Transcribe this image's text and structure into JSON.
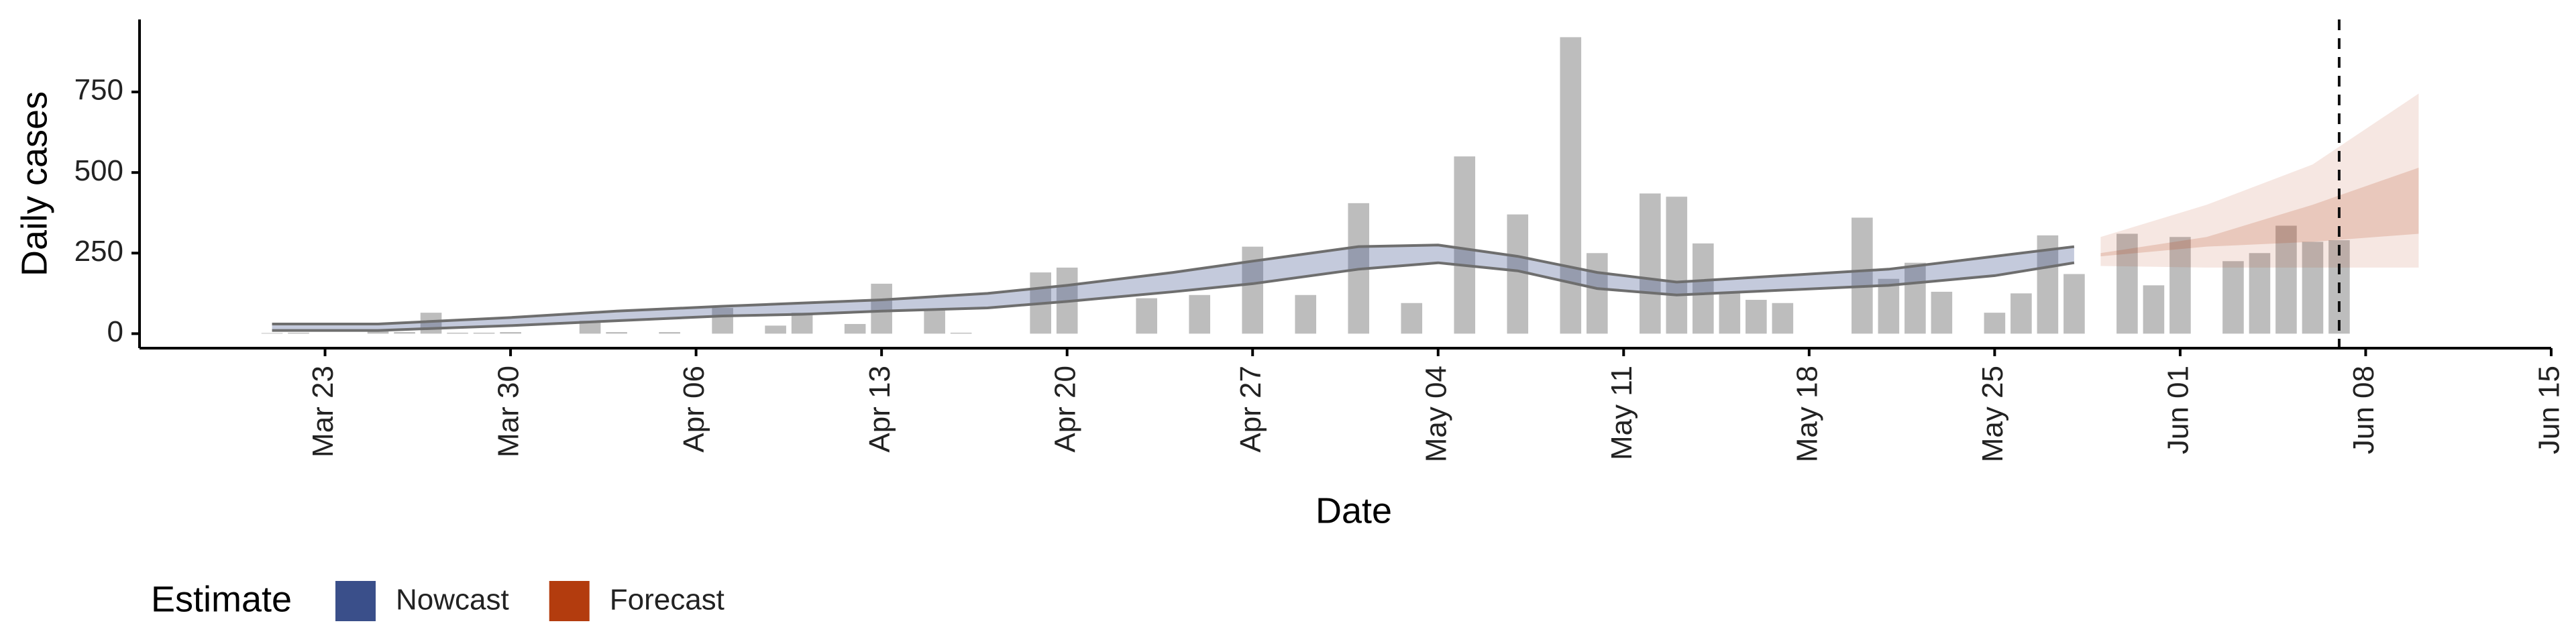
{
  "chart_data": {
    "type": "bar",
    "xlabel": "Date",
    "ylabel": "Daily cases",
    "x": [
      "Mar 21",
      "Mar 22",
      "Mar 25",
      "Mar 26",
      "Mar 27",
      "Mar 28",
      "Mar 29",
      "Mar 30",
      "Apr 2",
      "Apr 3",
      "Apr 5",
      "Apr 7",
      "Apr 9",
      "Apr 10",
      "Apr 12",
      "Apr 13",
      "Apr 15",
      "Apr 16",
      "Apr 19",
      "Apr 20",
      "Apr 23",
      "Apr 25",
      "Apr 27",
      "Apr 29",
      "May 1",
      "May 3",
      "May 5",
      "May 7",
      "May 9",
      "May 10",
      "May 12",
      "May 13",
      "May 14",
      "May 15",
      "May 16",
      "May 17",
      "May 20",
      "May 21",
      "May 22",
      "May 23",
      "May 25",
      "May 26",
      "May 27",
      "May 28",
      "May 30",
      "May 31",
      "Jun 1",
      "Jun 3",
      "Jun 4",
      "Jun 5",
      "Jun 6",
      "Jun 7"
    ],
    "values": [
      2,
      3,
      10,
      5,
      65,
      3,
      3,
      5,
      40,
      5,
      5,
      80,
      25,
      65,
      30,
      155,
      75,
      3,
      190,
      205,
      110,
      120,
      270,
      120,
      405,
      95,
      550,
      370,
      920,
      250,
      435,
      425,
      280,
      125,
      105,
      95,
      360,
      170,
      220,
      130,
      65,
      125,
      305,
      185,
      310,
      150,
      300,
      225,
      250,
      335,
      285,
      290
    ],
    "color": "#bdbdbd",
    "bands": [
      {
        "name": "Nowcast",
        "color": "#3a4f8a",
        "outline": "#6e6e6e",
        "x": [
          "Mar 21",
          "Mar 25",
          "Mar 30",
          "Apr 3",
          "Apr 7",
          "Apr 10",
          "Apr 13",
          "Apr 17",
          "Apr 20",
          "Apr 24",
          "Apr 27",
          "May 1",
          "May 4",
          "May 7",
          "May 10",
          "May 13",
          "May 17",
          "May 21",
          "May 25",
          "May 28"
        ],
        "upper": [
          30,
          30,
          50,
          70,
          85,
          95,
          105,
          125,
          150,
          190,
          225,
          270,
          275,
          240,
          190,
          160,
          180,
          200,
          240,
          270
        ],
        "lower": [
          10,
          10,
          25,
          40,
          55,
          60,
          70,
          80,
          100,
          130,
          155,
          200,
          220,
          195,
          140,
          120,
          135,
          150,
          180,
          220
        ]
      },
      {
        "name": "Forecast",
        "color": "#b33c0e",
        "x": [
          "May 29",
          "Jun 2",
          "Jun 6",
          "Jun 10"
        ],
        "upper": [
          300,
          400,
          525,
          745
        ],
        "lower": [
          210,
          205,
          205,
          205
        ],
        "inner_upper": [
          250,
          300,
          400,
          515
        ],
        "inner_lower": [
          240,
          270,
          285,
          310
        ]
      }
    ],
    "vline": "Jun 7",
    "xlim": [
      "Mar 16",
      "Jun 15"
    ],
    "xticks": [
      "Mar 23",
      "Mar 30",
      "Apr 06",
      "Apr 13",
      "Apr 20",
      "Apr 27",
      "May 04",
      "May 11",
      "May 18",
      "May 25",
      "Jun 01",
      "Jun 08",
      "Jun 15"
    ],
    "ylim": [
      -45,
      975
    ],
    "yticks": [
      0,
      250,
      500,
      750
    ],
    "legend_title": "Estimate"
  }
}
